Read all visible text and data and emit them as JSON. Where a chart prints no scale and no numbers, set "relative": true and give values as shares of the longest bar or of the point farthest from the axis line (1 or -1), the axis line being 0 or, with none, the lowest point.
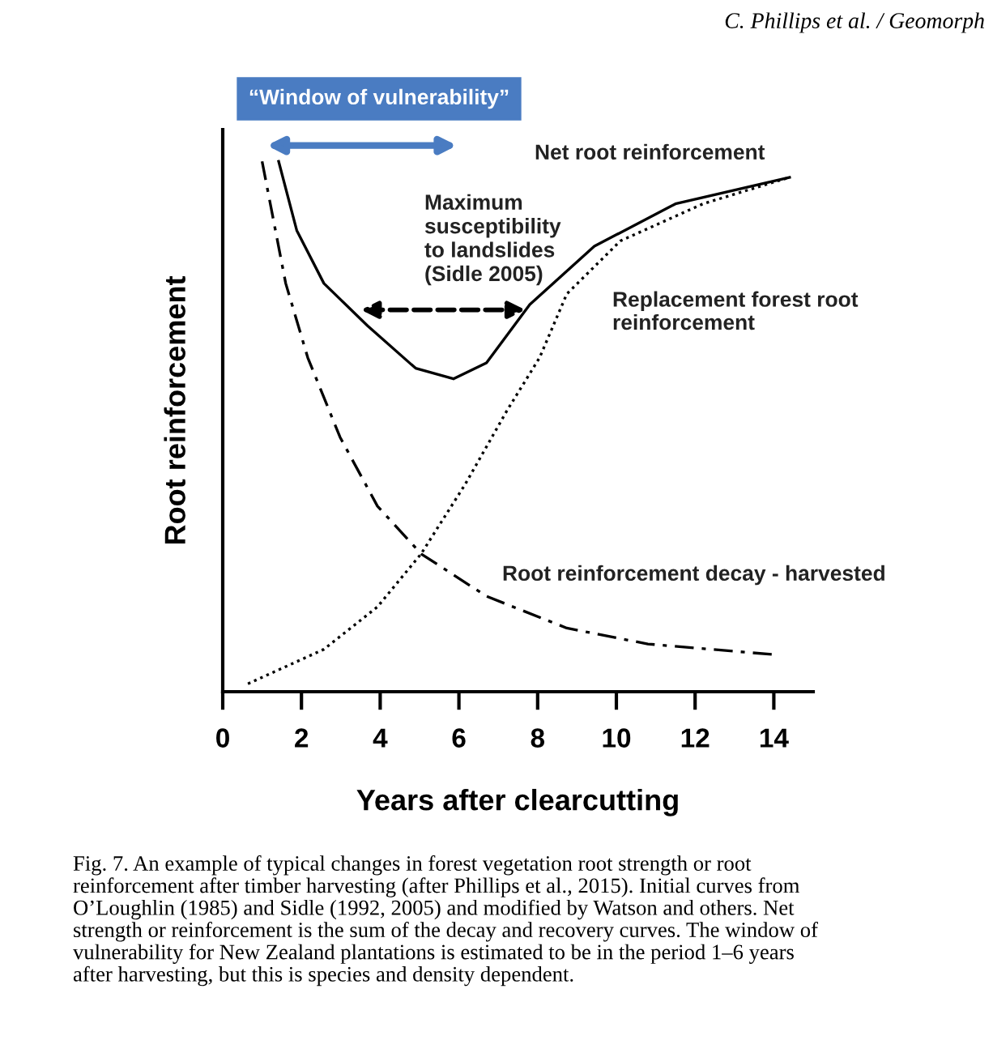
{
  "chart_data": {
    "type": "line",
    "relative": true,
    "xlabel": "Years after clearcutting",
    "ylabel": "Root reinforcement",
    "xlim": [
      0,
      15
    ],
    "xticks": [
      0,
      2,
      4,
      6,
      8,
      10,
      12,
      14
    ],
    "grid": false,
    "legend": false,
    "marker": "none",
    "series": [
      {
        "name": "Net root reinforcement",
        "color": "#000000",
        "line_style": "solid",
        "x": [
          1.42,
          1.88,
          2.57,
          3.68,
          4.9,
          5.86,
          6.7,
          7.8,
          9.44,
          11.5,
          14.4
        ],
        "values": [
          1.0,
          0.87,
          0.77,
          0.69,
          0.61,
          0.59,
          0.62,
          0.73,
          0.84,
          0.92,
          0.97
        ]
      },
      {
        "name": "Replacement forest root reinforcement",
        "color": "#000000",
        "line_style": "dotted",
        "x": [
          0.64,
          2.57,
          3.93,
          5.04,
          6.15,
          7.22,
          8.05,
          8.74,
          10.1,
          12.2,
          14.4
        ],
        "values": [
          0.015,
          0.08,
          0.16,
          0.26,
          0.39,
          0.53,
          0.63,
          0.75,
          0.85,
          0.92,
          0.97
        ]
      },
      {
        "name": "Root reinforcement decay - harvested",
        "color": "#000000",
        "line_style": "dashed",
        "x": [
          1.0,
          1.6,
          2.16,
          2.98,
          3.93,
          5.04,
          6.7,
          8.74,
          10.8,
          14.0
        ],
        "values": [
          1.0,
          0.77,
          0.63,
          0.48,
          0.35,
          0.26,
          0.18,
          0.12,
          0.09,
          0.07
        ]
      }
    ],
    "annotations": [
      "C. Phillips et al. / Geomorph",
      "“Window of vulnerability”",
      "Maximum\nsusceptibility\nto landslides\n(Sidle 2005)",
      "Fig. 7. An example of typical changes in forest vegetation root strength or root\nreinforcement after timber harvesting (after Phillips et al., 2015). Initial curves from\nO’Loughlin (1985) and Sidle (1992, 2005) and modified by Watson and others. Net\nstrength or reinforcement is the sum of the decay and recovery curves. The window of\nvulnerability for New Zealand plantations is estimated to be in the period 1–6 years\nafter harvesting, but this is species and density dependent."
    ]
  }
}
